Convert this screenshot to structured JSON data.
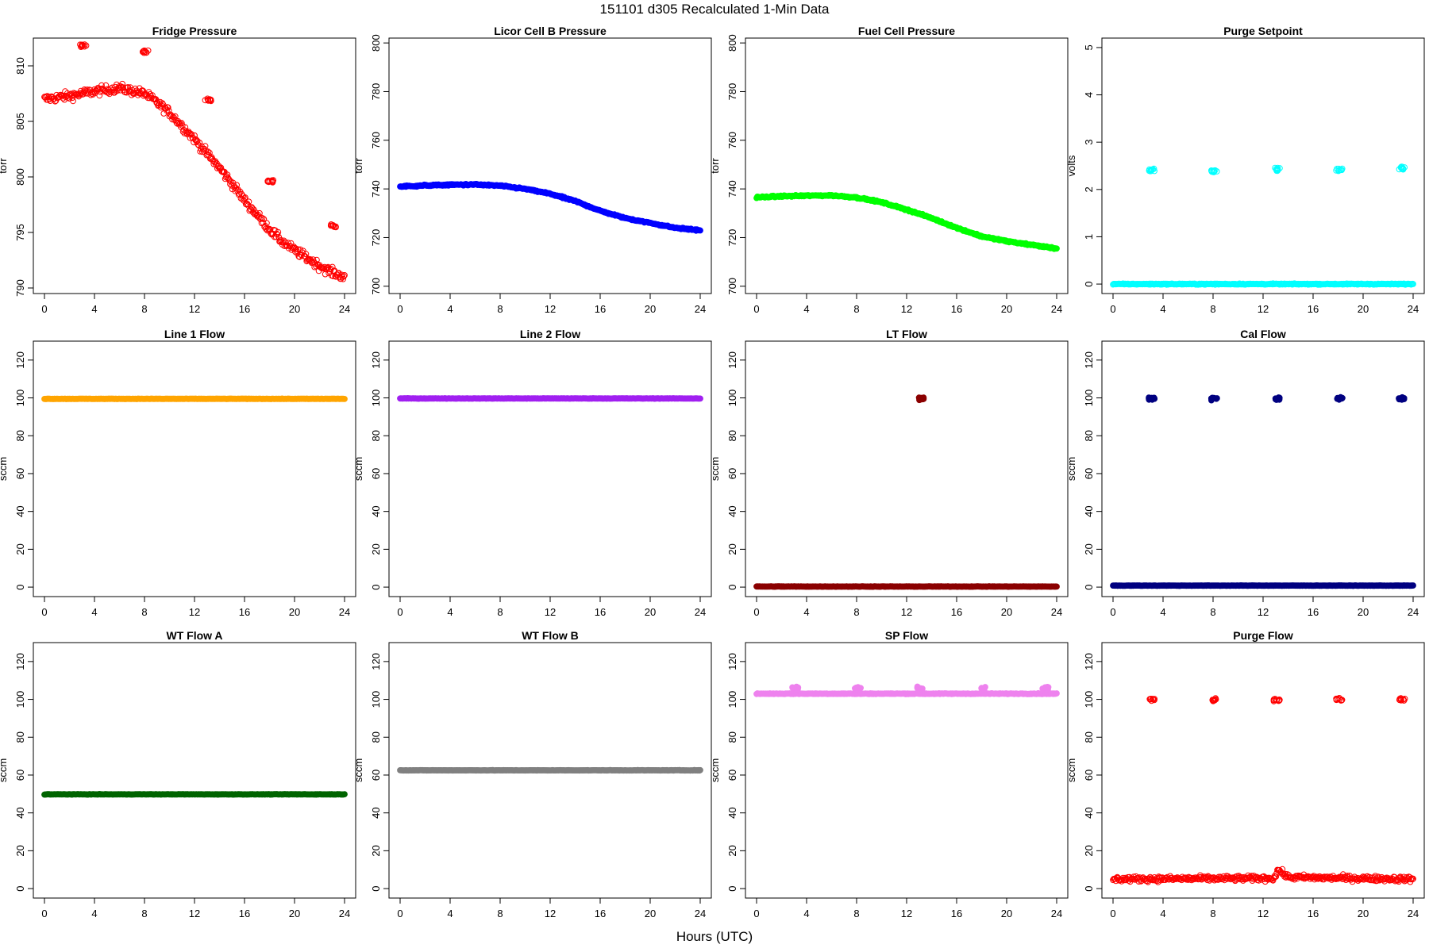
{
  "figure": {
    "title_parts": [
      "151101",
      "d305",
      "Recalculated 1-Min Data"
    ],
    "xlabel": "Hours (UTC)"
  },
  "chart_data": [
    {
      "type": "scatter",
      "title": "Fridge Pressure",
      "ylabel": "torr",
      "xlim": [
        0,
        24
      ],
      "ylim": [
        789.5,
        812.5
      ],
      "xticks": [
        0,
        4,
        8,
        12,
        16,
        20,
        24
      ],
      "yticks": [
        790,
        795,
        800,
        805,
        810
      ],
      "marker": "open",
      "color": "#ff0000",
      "noise": 0.4,
      "series": [
        {
          "x": [
            0,
            2,
            4,
            6,
            8,
            9,
            10,
            11,
            12,
            13,
            14,
            15,
            16,
            17,
            18,
            19,
            20,
            21,
            22,
            23,
            24
          ],
          "y": [
            807,
            807.3,
            807.7,
            808,
            807.5,
            806.7,
            805.8,
            804.6,
            803.4,
            802.1,
            800.8,
            799.4,
            797.9,
            796.6,
            795.3,
            794.2,
            793.4,
            792.7,
            792,
            791.4,
            791
          ]
        }
      ],
      "spikes": [
        {
          "x": 3.1,
          "y": 811.8
        },
        {
          "x": 8.1,
          "y": 811.3
        },
        {
          "x": 13.1,
          "y": 806.9
        },
        {
          "x": 18.1,
          "y": 799.6
        },
        {
          "x": 23.1,
          "y": 795.6
        }
      ]
    },
    {
      "type": "scatter",
      "title": "Licor Cell B Pressure",
      "ylabel": "torr",
      "xlim": [
        0,
        24
      ],
      "ylim": [
        697,
        802
      ],
      "xticks": [
        0,
        4,
        8,
        12,
        16,
        20,
        24
      ],
      "yticks": [
        700,
        720,
        740,
        760,
        780,
        800
      ],
      "marker": "filled",
      "color": "#0000ff",
      "noise": 0.3,
      "series": [
        {
          "x": [
            0,
            2,
            4,
            6,
            8,
            10,
            12,
            14,
            16,
            18,
            20,
            22,
            24
          ],
          "y": [
            741,
            741.4,
            741.7,
            741.8,
            741.3,
            740,
            738,
            735,
            731,
            728,
            726,
            724,
            723
          ]
        }
      ]
    },
    {
      "type": "scatter",
      "title": "Fuel Cell Pressure",
      "ylabel": "torr",
      "xlim": [
        0,
        24
      ],
      "ylim": [
        697,
        802
      ],
      "xticks": [
        0,
        4,
        8,
        12,
        16,
        20,
        24
      ],
      "yticks": [
        700,
        720,
        740,
        760,
        780,
        800
      ],
      "marker": "filled",
      "color": "#00ff00",
      "noise": 0.3,
      "series": [
        {
          "x": [
            0,
            2,
            4,
            6,
            8,
            10,
            12,
            14,
            16,
            18,
            20,
            22,
            24
          ],
          "y": [
            736.5,
            737,
            737.2,
            737.3,
            736.5,
            734.5,
            731.5,
            728,
            724,
            720.5,
            718.5,
            717,
            715.5
          ]
        }
      ]
    },
    {
      "type": "scatter",
      "title": "Purge Setpoint",
      "ylabel": "volts",
      "xlim": [
        0,
        24
      ],
      "ylim": [
        -0.2,
        5.2
      ],
      "xticks": [
        0,
        4,
        8,
        12,
        16,
        20,
        24
      ],
      "yticks": [
        0,
        1,
        2,
        3,
        4,
        5
      ],
      "marker": "open",
      "color": "#00ffff",
      "noise": 0.01,
      "series": [
        {
          "x": [
            0,
            24
          ],
          "y": [
            0,
            0
          ]
        }
      ],
      "spikes": [
        {
          "x": 3.1,
          "y": 2.42
        },
        {
          "x": 8.1,
          "y": 2.4
        },
        {
          "x": 13.1,
          "y": 2.43
        },
        {
          "x": 18.1,
          "y": 2.42
        },
        {
          "x": 23.1,
          "y": 2.45
        }
      ]
    },
    {
      "type": "scatter",
      "title": "Line 1 Flow",
      "ylabel": "sccm",
      "xlim": [
        0,
        24
      ],
      "ylim": [
        -5,
        130
      ],
      "xticks": [
        0,
        4,
        8,
        12,
        16,
        20,
        24
      ],
      "yticks": [
        0,
        20,
        40,
        60,
        80,
        100,
        120
      ],
      "marker": "filled",
      "color": "#ffa500",
      "noise": 0.1,
      "series": [
        {
          "x": [
            0,
            24
          ],
          "y": [
            99.5,
            99.5
          ]
        }
      ]
    },
    {
      "type": "scatter",
      "title": "Line 2 Flow",
      "ylabel": "sccm",
      "xlim": [
        0,
        24
      ],
      "ylim": [
        -5,
        130
      ],
      "xticks": [
        0,
        4,
        8,
        12,
        16,
        20,
        24
      ],
      "yticks": [
        0,
        20,
        40,
        60,
        80,
        100,
        120
      ],
      "marker": "filled",
      "color": "#a020f0",
      "noise": 0.1,
      "series": [
        {
          "x": [
            0,
            24
          ],
          "y": [
            99.7,
            99.7
          ]
        }
      ]
    },
    {
      "type": "scatter",
      "title": "LT Flow",
      "ylabel": "sccm",
      "xlim": [
        0,
        24
      ],
      "ylim": [
        -5,
        130
      ],
      "xticks": [
        0,
        4,
        8,
        12,
        16,
        20,
        24
      ],
      "yticks": [
        0,
        20,
        40,
        60,
        80,
        100,
        120
      ],
      "marker": "filled",
      "color": "#8b0000",
      "noise": 0.1,
      "series": [
        {
          "x": [
            0,
            24
          ],
          "y": [
            0.3,
            0.3
          ]
        }
      ],
      "spikes": [
        {
          "x": 13.2,
          "y": 99.6
        }
      ]
    },
    {
      "type": "scatter",
      "title": "Cal Flow",
      "ylabel": "sccm",
      "xlim": [
        0,
        24
      ],
      "ylim": [
        -5,
        130
      ],
      "xticks": [
        0,
        4,
        8,
        12,
        16,
        20,
        24
      ],
      "yticks": [
        0,
        20,
        40,
        60,
        80,
        100,
        120
      ],
      "marker": "filled",
      "color": "#000080",
      "noise": 0.1,
      "series": [
        {
          "x": [
            0,
            24
          ],
          "y": [
            0.8,
            0.8
          ]
        }
      ],
      "spikes": [
        {
          "x": 3.1,
          "y": 99.6
        },
        {
          "x": 8.1,
          "y": 99.6
        },
        {
          "x": 13.1,
          "y": 99.6
        },
        {
          "x": 18.1,
          "y": 99.6
        },
        {
          "x": 23.1,
          "y": 99.6
        }
      ]
    },
    {
      "type": "scatter",
      "title": "WT Flow A",
      "ylabel": "sccm",
      "xlim": [
        0,
        24
      ],
      "ylim": [
        -5,
        130
      ],
      "xticks": [
        0,
        4,
        8,
        12,
        16,
        20,
        24
      ],
      "yticks": [
        0,
        20,
        40,
        60,
        80,
        100,
        120
      ],
      "marker": "filled",
      "color": "#006400",
      "noise": 0.1,
      "series": [
        {
          "x": [
            0,
            24
          ],
          "y": [
            49.8,
            49.8
          ]
        }
      ]
    },
    {
      "type": "scatter",
      "title": "WT Flow B",
      "ylabel": "sccm",
      "xlim": [
        0,
        24
      ],
      "ylim": [
        -5,
        130
      ],
      "xticks": [
        0,
        4,
        8,
        12,
        16,
        20,
        24
      ],
      "yticks": [
        0,
        20,
        40,
        60,
        80,
        100,
        120
      ],
      "marker": "filled",
      "color": "#808080",
      "noise": 0.1,
      "series": [
        {
          "x": [
            0,
            24
          ],
          "y": [
            62.5,
            62.5
          ]
        }
      ]
    },
    {
      "type": "scatter",
      "title": "SP Flow",
      "ylabel": "sccm",
      "xlim": [
        0,
        24
      ],
      "ylim": [
        -5,
        130
      ],
      "xticks": [
        0,
        4,
        8,
        12,
        16,
        20,
        24
      ],
      "yticks": [
        0,
        20,
        40,
        60,
        80,
        100,
        120
      ],
      "marker": "filled",
      "color": "#ee82ee",
      "noise": 0.2,
      "series": [
        {
          "x": [
            0,
            24
          ],
          "y": [
            103,
            103
          ]
        }
      ],
      "spikes": [
        {
          "x": 3.1,
          "y": 106
        },
        {
          "x": 8.1,
          "y": 106
        },
        {
          "x": 13.1,
          "y": 106
        },
        {
          "x": 18.1,
          "y": 106
        },
        {
          "x": 23.1,
          "y": 106
        }
      ]
    },
    {
      "type": "scatter",
      "title": "Purge Flow",
      "ylabel": "sccm",
      "xlim": [
        0,
        24
      ],
      "ylim": [
        -5,
        130
      ],
      "xticks": [
        0,
        4,
        8,
        12,
        16,
        20,
        24
      ],
      "yticks": [
        0,
        20,
        40,
        60,
        80,
        100,
        120
      ],
      "marker": "open",
      "color": "#ff0000",
      "noise": 1.4,
      "series": [
        {
          "x": [
            0,
            12.9,
            13.2,
            14,
            24
          ],
          "y": [
            5,
            5.5,
            10,
            6,
            5
          ]
        }
      ],
      "spikes": [
        {
          "x": 3.1,
          "y": 100
        },
        {
          "x": 8.1,
          "y": 99.8
        },
        {
          "x": 13.1,
          "y": 99.5
        },
        {
          "x": 18.1,
          "y": 100
        },
        {
          "x": 23.1,
          "y": 100
        }
      ]
    }
  ]
}
